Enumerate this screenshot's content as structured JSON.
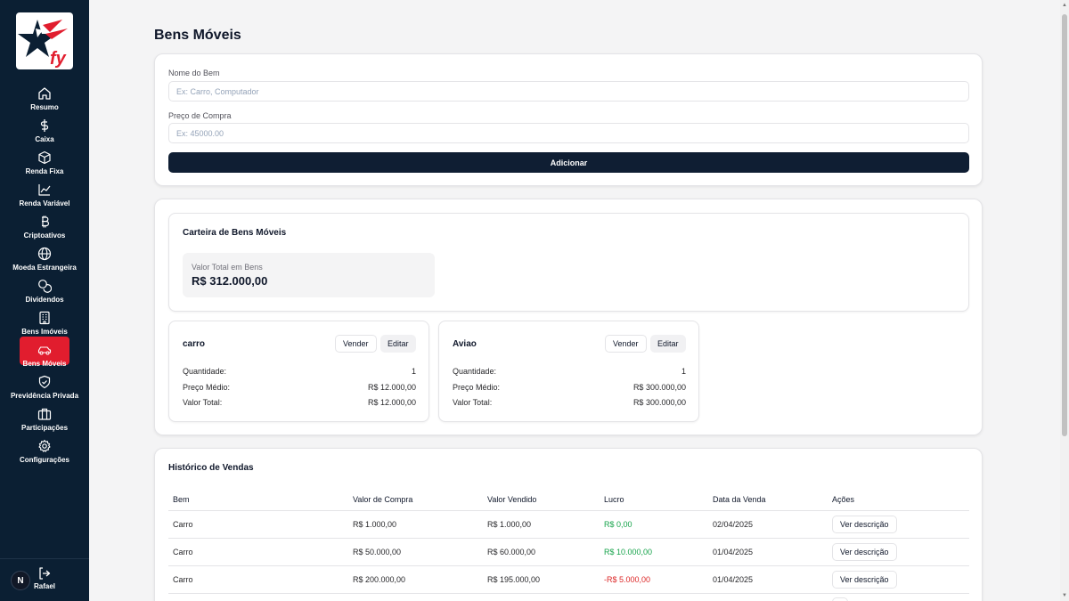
{
  "sidebar": {
    "logo_alt": "fy",
    "items": [
      {
        "label": "Resumo",
        "icon": "home-icon"
      },
      {
        "label": "Caixa",
        "icon": "dollar-icon"
      },
      {
        "label": "Renda Fixa",
        "icon": "box-icon"
      },
      {
        "label": "Renda Variável",
        "icon": "line-chart-icon"
      },
      {
        "label": "Criptoativos",
        "icon": "bitcoin-icon"
      },
      {
        "label": "Moeda Estrangeira",
        "icon": "globe-icon"
      },
      {
        "label": "Dividendos",
        "icon": "coins-icon"
      },
      {
        "label": "Bens Imóveis",
        "icon": "building-icon"
      },
      {
        "label": "Bens Móveis",
        "icon": "car-icon",
        "active": true
      },
      {
        "label": "Previdência Privada",
        "icon": "shield-icon"
      },
      {
        "label": "Participações",
        "icon": "briefcase-icon"
      },
      {
        "label": "Configurações",
        "icon": "gear-icon"
      }
    ],
    "user": {
      "initial": "N",
      "name": "Rafael"
    },
    "active_color": "#e11d2e",
    "background": "#0b1f33"
  },
  "page": {
    "title": "Bens Móveis"
  },
  "form": {
    "name_label": "Nome do Bem",
    "name_placeholder": "Ex: Carro, Computador",
    "price_label": "Preço de Compra",
    "price_placeholder": "Ex: 45000.00",
    "submit_label": "Adicionar"
  },
  "portfolio": {
    "title": "Carteira de Bens Móveis",
    "total_label": "Valor Total em Bens",
    "total_value": "R$ 312.000,00",
    "sell_label": "Vender",
    "edit_label": "Editar",
    "row_labels": {
      "quantity": "Quantidade:",
      "avg_price": "Preço Médio:",
      "total": "Valor Total:"
    },
    "assets": [
      {
        "name": "carro",
        "quantity": "1",
        "avg_price": "R$ 12.000,00",
        "total": "R$ 12.000,00"
      },
      {
        "name": "Aviao",
        "quantity": "1",
        "avg_price": "R$ 300.000,00",
        "total": "R$ 300.000,00"
      }
    ]
  },
  "history": {
    "title": "Histórico de Vendas",
    "columns": [
      "Bem",
      "Valor de Compra",
      "Valor Vendido",
      "Lucro",
      "Data da Venda",
      "Ações"
    ],
    "action_label": "Ver descrição",
    "rows": [
      {
        "asset": "Carro",
        "buy": "R$ 1.000,00",
        "sold": "R$ 1.000,00",
        "profit": "R$ 0,00",
        "profit_sign": "pos",
        "date": "02/04/2025"
      },
      {
        "asset": "Carro",
        "buy": "R$ 50.000,00",
        "sold": "R$ 60.000,00",
        "profit": "R$ 10.000,00",
        "profit_sign": "pos",
        "date": "01/04/2025"
      },
      {
        "asset": "Carro",
        "buy": "R$ 200.000,00",
        "sold": "R$ 195.000,00",
        "profit": "-R$ 5.000,00",
        "profit_sign": "neg",
        "date": "01/04/2025"
      }
    ],
    "positive_color": "#16a34a",
    "negative_color": "#dc2626"
  }
}
